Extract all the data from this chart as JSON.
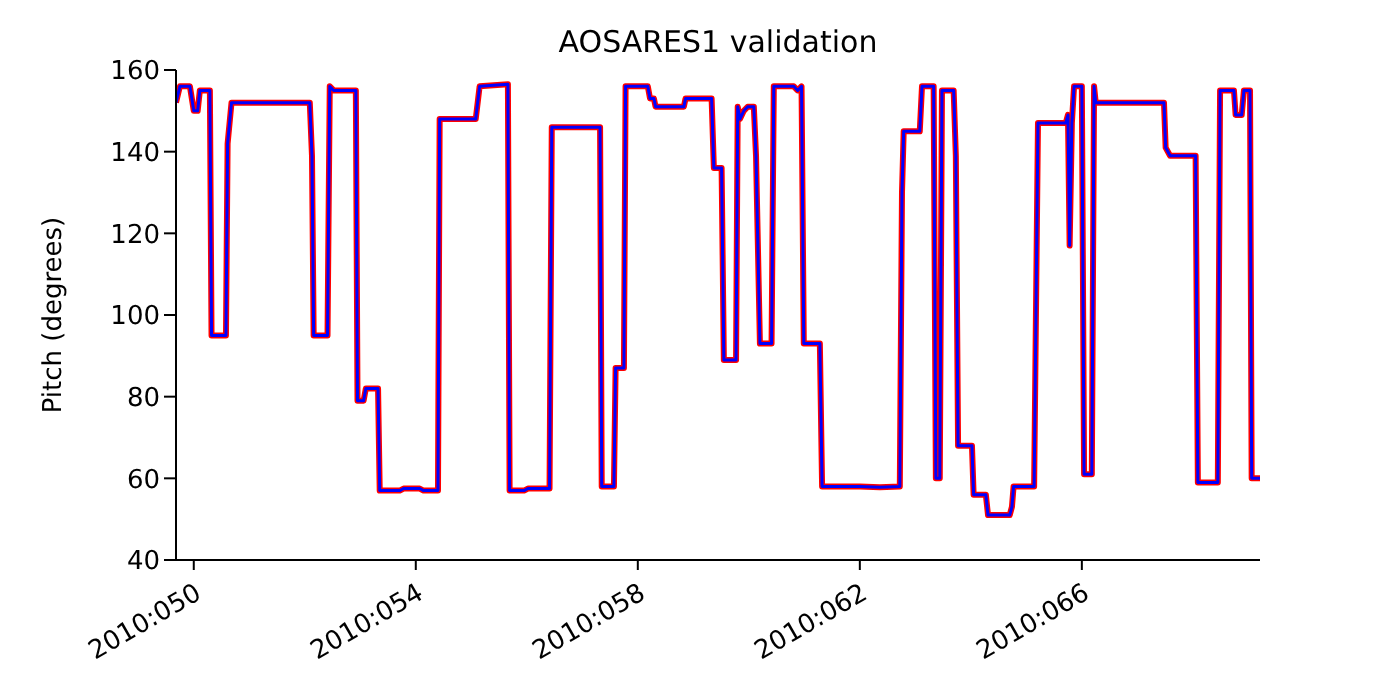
{
  "chart_data": {
    "type": "line",
    "title": "AOSARES1 validation",
    "ylabel": "Pitch (degrees)",
    "x": [
      "2010-02-18T16:19",
      "2010-02-18T18:00",
      "2010-02-18T22:19",
      "2010-02-19T00:00",
      "2010-02-19T01:41",
      "2010-02-19T02:38",
      "2010-02-19T06:58",
      "2010-02-19T07:41",
      "2010-02-19T13:55",
      "2010-02-19T14:38",
      "2010-02-19T16:19",
      "2010-02-21T02:10",
      "2010-02-21T03:07",
      "2010-02-21T03:50",
      "2010-02-21T09:50",
      "2010-02-21T10:48",
      "2010-02-21T12:29",
      "2010-02-21T22:05",
      "2010-02-21T22:48",
      "2010-02-22T01:26",
      "2010-02-22T02:24",
      "2010-02-22T07:41",
      "2010-02-22T08:24",
      "2010-02-22T17:02",
      "2010-02-22T18:43",
      "2010-02-23T01:41",
      "2010-02-23T03:22",
      "2010-02-23T09:36",
      "2010-02-23T10:19",
      "2010-02-24T01:55",
      "2010-02-24T03:36",
      "2010-02-24T15:50",
      "2010-02-24T16:34",
      "2010-02-24T22:48",
      "2010-02-25T00:29",
      "2010-02-25T09:50",
      "2010-02-25T10:48",
      "2010-02-26T07:41",
      "2010-02-26T08:24",
      "2010-02-26T13:41",
      "2010-02-26T14:24",
      "2010-02-26T18:00",
      "2010-02-26T18:43",
      "2010-02-27T04:19",
      "2010-02-27T05:17",
      "2010-02-27T06:58",
      "2010-02-27T07:41",
      "2010-02-27T19:55",
      "2010-02-27T20:38",
      "2010-02-28T07:55",
      "2010-02-28T08:53",
      "2010-02-28T12:14",
      "2010-02-28T13:12",
      "2010-02-28T18:29",
      "2010-02-28T19:12",
      "2010-02-28T20:10",
      "2010-02-28T21:50",
      "2010-02-28T23:31",
      "2010-03-01T02:10",
      "2010-03-01T03:07",
      "2010-03-01T04:48",
      "2010-03-01T09:50",
      "2010-03-01T10:48",
      "2010-03-01T19:26",
      "2010-03-01T21:07",
      "2010-03-01T22:48",
      "2010-03-01T23:46",
      "2010-03-02T06:43",
      "2010-03-02T07:41",
      "2010-03-03T00:00",
      "2010-03-03T08:38",
      "2010-03-03T17:17",
      "2010-03-03T18:14",
      "2010-03-03T18:58",
      "2010-03-04T01:55",
      "2010-03-04T02:53",
      "2010-03-04T07:55",
      "2010-03-04T08:53",
      "2010-03-04T10:34",
      "2010-03-04T11:31",
      "2010-03-04T16:34",
      "2010-03-04T17:31",
      "2010-03-04T18:29",
      "2010-03-05T00:29",
      "2010-03-05T01:12",
      "2010-03-05T06:29",
      "2010-03-05T07:26",
      "2010-03-05T16:48",
      "2010-03-05T17:46",
      "2010-03-05T18:29",
      "2010-03-06T03:22",
      "2010-03-06T05:02",
      "2010-03-06T17:02",
      "2010-03-06T18:00",
      "2010-03-06T18:43",
      "2010-03-06T19:41",
      "2010-03-06T20:38",
      "2010-03-07T00:00",
      "2010-03-07T00:58",
      "2010-03-07T04:19",
      "2010-03-07T05:17",
      "2010-03-07T06:00",
      "2010-03-08T11:31",
      "2010-03-08T12:14",
      "2010-03-08T14:10",
      "2010-03-09T01:12",
      "2010-03-09T02:10",
      "2010-03-09T10:48",
      "2010-03-09T11:46",
      "2010-03-09T17:46",
      "2010-03-09T18:29",
      "2010-03-09T21:07",
      "2010-03-09T22:05",
      "2010-03-10T00:43",
      "2010-03-10T01:26",
      "2010-03-10T05:02"
    ],
    "series": [
      {
        "color": "#ff0000",
        "values": [
          152,
          156,
          156,
          150,
          150,
          155,
          155,
          95,
          95,
          142,
          152,
          152,
          139,
          95,
          95,
          156,
          155,
          155,
          79,
          79,
          82,
          82,
          57,
          57,
          57.5,
          57.5,
          57,
          57,
          148,
          148,
          156,
          156.5,
          57,
          57,
          57.5,
          57.5,
          146,
          146,
          58,
          58,
          87,
          87,
          156,
          156,
          153,
          153,
          151,
          151,
          153,
          153,
          136,
          136,
          89,
          89,
          151,
          148,
          150,
          151,
          151,
          139,
          93,
          93,
          156,
          156,
          155,
          156,
          93,
          93,
          58,
          58,
          57.8,
          58,
          130,
          145,
          145,
          156,
          156,
          60,
          60,
          155,
          155,
          139,
          68,
          68,
          56,
          56,
          51,
          51,
          53,
          58,
          58,
          147,
          147,
          149,
          117,
          147,
          156,
          156,
          61,
          61,
          156,
          152,
          152,
          141,
          139,
          139,
          59,
          59,
          155,
          155,
          149,
          149,
          155,
          155,
          60,
          60
        ]
      },
      {
        "color": "#0000ff",
        "values": [
          152,
          156,
          156,
          150,
          150,
          155,
          155,
          95,
          95,
          142,
          152,
          152,
          139,
          95,
          95,
          156,
          155,
          155,
          79,
          79,
          82,
          82,
          57,
          57,
          57.5,
          57.5,
          57,
          57,
          148,
          148,
          156,
          156.5,
          57,
          57,
          57.5,
          57.5,
          146,
          146,
          58,
          58,
          87,
          87,
          156,
          156,
          153,
          153,
          151,
          151,
          153,
          153,
          136,
          136,
          89,
          89,
          151,
          148,
          150,
          151,
          151,
          139,
          93,
          93,
          156,
          156,
          155,
          156,
          93,
          93,
          58,
          58,
          57.8,
          58,
          130,
          145,
          145,
          156,
          156,
          60,
          60,
          155,
          155,
          139,
          68,
          68,
          56,
          56,
          51,
          51,
          53,
          58,
          58,
          147,
          147,
          149,
          117,
          147,
          156,
          156,
          61,
          61,
          156,
          152,
          152,
          141,
          139,
          139,
          59,
          59,
          155,
          155,
          149,
          149,
          155,
          155,
          60,
          60
        ]
      }
    ],
    "xlim": [
      "2010-02-18T16:19",
      "2010-03-10T05:02"
    ],
    "xticks": [
      {
        "value": "2010-02-19",
        "label": "2010:050"
      },
      {
        "value": "2010-02-23",
        "label": "2010:054"
      },
      {
        "value": "2010-02-27",
        "label": "2010:058"
      },
      {
        "value": "2010-03-03",
        "label": "2010:062"
      },
      {
        "value": "2010-03-07",
        "label": "2010:066"
      }
    ],
    "ylim": [
      40,
      160
    ],
    "yticks": [
      40,
      60,
      80,
      100,
      120,
      140,
      160
    ],
    "grid": false,
    "legend": false,
    "marker": "none"
  }
}
